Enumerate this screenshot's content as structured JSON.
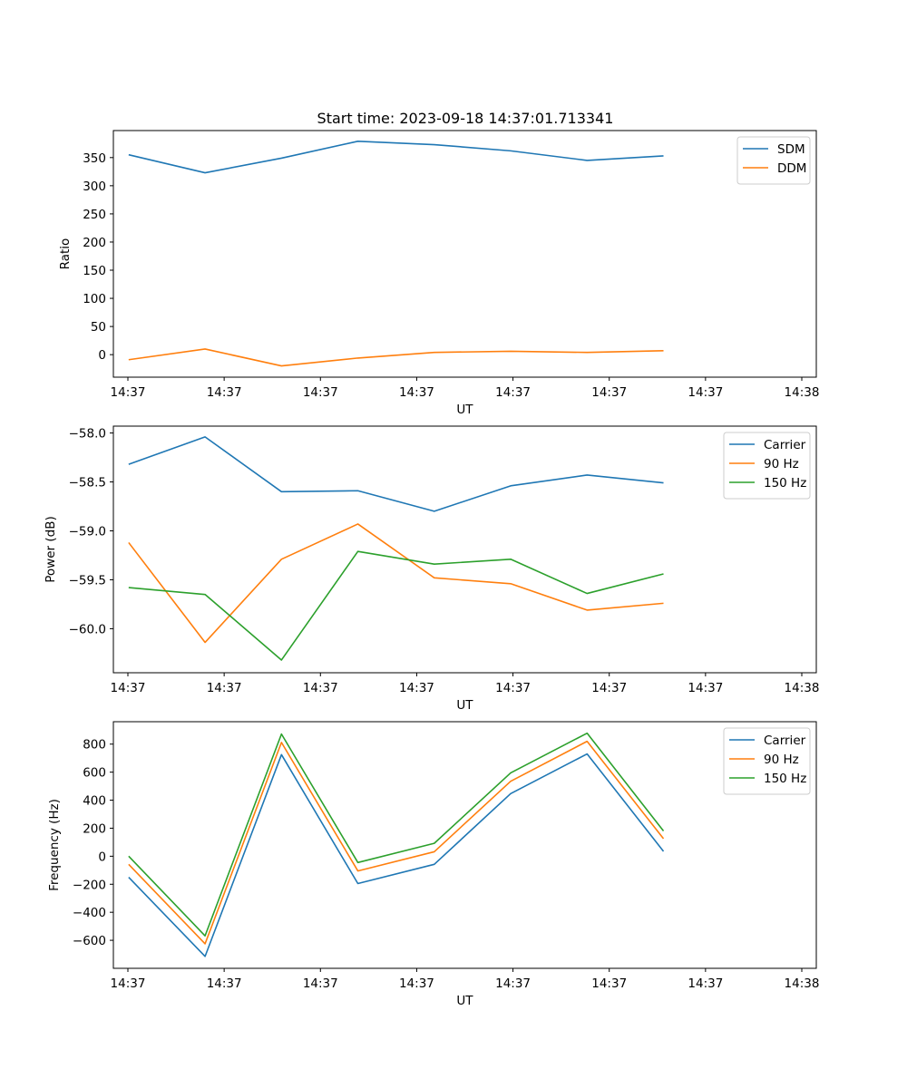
{
  "title": "Start time: 2023-09-18 14:37:01.713341",
  "chart_data": [
    {
      "type": "line",
      "title": "Start time: 2023-09-18 14:37:01.713341",
      "xlabel": "UT",
      "ylabel": "Ratio",
      "x_tick_labels": [
        "14:37",
        "14:37",
        "14:37",
        "14:37",
        "14:37",
        "14:37",
        "14:37",
        "14:38"
      ],
      "xlim": [
        -0.2,
        9.0
      ],
      "ylim": [
        -40,
        398
      ],
      "y_ticks": [
        0,
        50,
        100,
        150,
        200,
        250,
        300,
        350
      ],
      "legend_position": "top-right",
      "x": [
        0,
        1,
        2,
        3,
        4,
        5,
        6,
        7
      ],
      "series": [
        {
          "name": "SDM",
          "color": "#1f77b4",
          "values": [
            355,
            323,
            349,
            379,
            373,
            362,
            345,
            353
          ]
        },
        {
          "name": "DDM",
          "color": "#ff7f0e",
          "values": [
            -9,
            10,
            -20,
            -6,
            4,
            6,
            4,
            7
          ]
        }
      ]
    },
    {
      "type": "line",
      "title": "",
      "xlabel": "UT",
      "ylabel": "Power (dB)",
      "x_tick_labels": [
        "14:37",
        "14:37",
        "14:37",
        "14:37",
        "14:37",
        "14:37",
        "14:37",
        "14:38"
      ],
      "xlim": [
        -0.2,
        9.0
      ],
      "ylim": [
        -60.45,
        -57.93
      ],
      "y_ticks": [
        -60.0,
        -59.5,
        -59.0,
        -58.5,
        -58.0
      ],
      "legend_position": "top-right",
      "x": [
        0,
        1,
        2,
        3,
        4,
        5,
        6,
        7
      ],
      "series": [
        {
          "name": "Carrier",
          "color": "#1f77b4",
          "values": [
            -58.32,
            -58.04,
            -58.6,
            -58.59,
            -58.8,
            -58.54,
            -58.43,
            -58.51
          ]
        },
        {
          "name": "90 Hz",
          "color": "#ff7f0e",
          "values": [
            -59.12,
            -60.14,
            -59.29,
            -58.93,
            -59.48,
            -59.54,
            -59.81,
            -59.74
          ]
        },
        {
          "name": "150 Hz",
          "color": "#2ca02c",
          "values": [
            -59.58,
            -59.65,
            -60.32,
            -59.21,
            -59.34,
            -59.29,
            -59.64,
            -59.44
          ]
        }
      ]
    },
    {
      "type": "line",
      "title": "",
      "xlabel": "UT",
      "ylabel": "Frequency (Hz)",
      "x_tick_labels": [
        "14:37",
        "14:37",
        "14:37",
        "14:37",
        "14:37",
        "14:37",
        "14:37",
        "14:38"
      ],
      "xlim": [
        -0.2,
        9.0
      ],
      "ylim": [
        -800,
        960
      ],
      "y_ticks": [
        -600,
        -400,
        -200,
        0,
        200,
        400,
        600,
        800
      ],
      "legend_position": "top-right",
      "x": [
        0,
        1,
        2,
        3,
        4,
        5,
        6,
        7
      ],
      "series": [
        {
          "name": "Carrier",
          "color": "#1f77b4",
          "values": [
            -150,
            -715,
            725,
            -195,
            -58,
            447,
            730,
            35
          ]
        },
        {
          "name": "90 Hz",
          "color": "#ff7f0e",
          "values": [
            -58,
            -625,
            812,
            -105,
            32,
            535,
            820,
            125
          ]
        },
        {
          "name": "150 Hz",
          "color": "#2ca02c",
          "values": [
            0,
            -568,
            872,
            -45,
            92,
            595,
            878,
            180
          ]
        }
      ]
    }
  ]
}
